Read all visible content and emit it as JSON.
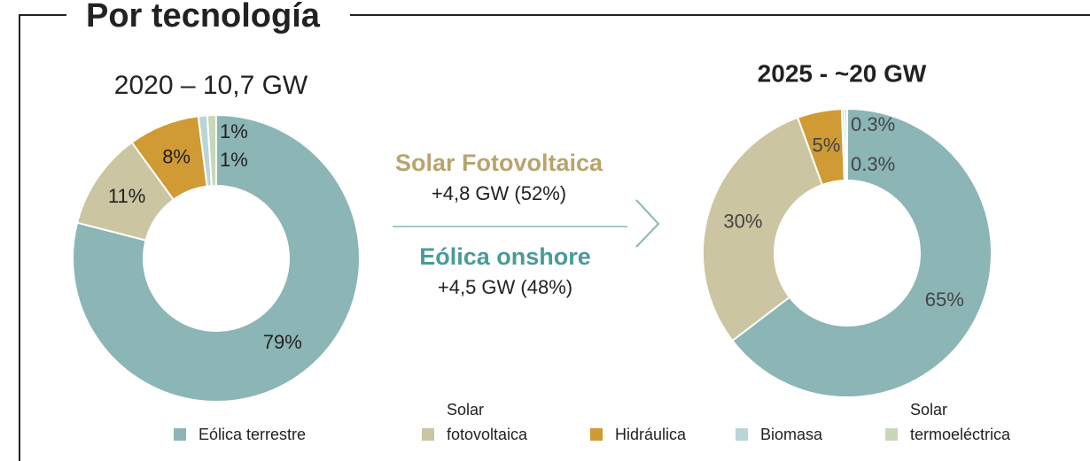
{
  "chart_data": {
    "type": "pie",
    "title": "Por tecnología",
    "categories": [
      "Eólica terrestre",
      "Solar fotovoltaica",
      "Hidráulica",
      "Biomasa",
      "Solar termoeléctrica"
    ],
    "colors": [
      "#8cb5b5",
      "#cbc5a1",
      "#d09a35",
      "#b9d5d6",
      "#c6d8b8"
    ],
    "series": [
      {
        "name": "2020 – 10,7 GW",
        "values": [
          79,
          11,
          8,
          1,
          1
        ],
        "value_labels": [
          "79%",
          "11%",
          "8%",
          "1%",
          "1%"
        ]
      },
      {
        "name": "2025 - ~20 GW",
        "values": [
          65,
          30,
          5,
          0.3,
          0.3
        ],
        "value_labels": [
          "65%",
          "30%",
          "5%",
          "0.3%",
          "0.3%"
        ]
      }
    ],
    "annotations": [
      {
        "title": "Solar Fotovoltaica",
        "text": "+4,8 GW (52%)",
        "color": "#b8a46c"
      },
      {
        "title": "Eólica onshore",
        "text": "+4,5 GW (48%)",
        "color": "#4b9a9a"
      }
    ]
  }
}
